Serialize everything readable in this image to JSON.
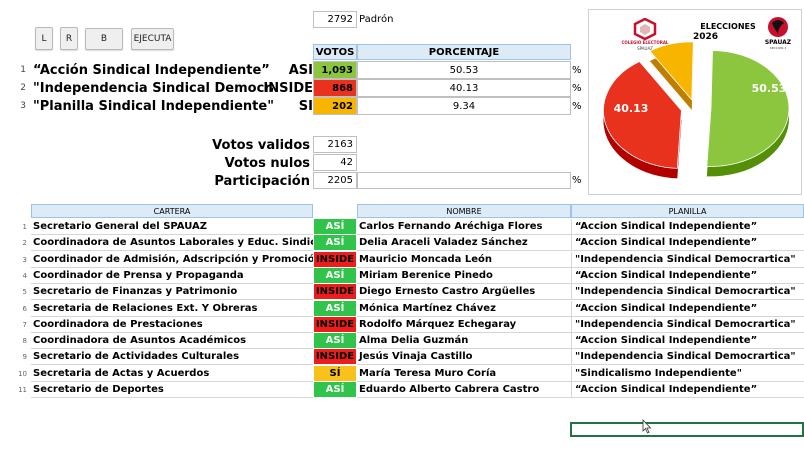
{
  "toolbar": {
    "l_label": "L",
    "r_label": "R",
    "b_label": "B",
    "ejecuta_label": "EJECUTA"
  },
  "padron": {
    "value": "2792",
    "label": "Padrón"
  },
  "headers": {
    "votos": "VOTOS",
    "porcentaje": "PORCENTAJE"
  },
  "candidates": [
    {
      "num": "1",
      "name": "“Acción Sindical Independiente”",
      "abbr": "ASI",
      "votes": "1,093",
      "pct": "50.53",
      "sign": "%",
      "color": "#8cc63f"
    },
    {
      "num": "2",
      "name": "\"Independencia Sindical Democrática\"",
      "abbr": "INSIDE",
      "votes": "868",
      "pct": "40.13",
      "sign": "%",
      "color": "#e8321e"
    },
    {
      "num": "3",
      "name": "\"Planilla Sindical Independiente\"",
      "abbr": "SI",
      "votes": "202",
      "pct": "9.34",
      "sign": "%",
      "color": "#f7b500"
    }
  ],
  "summary": [
    {
      "label": "Votos validos",
      "value": "2163",
      "sign": ""
    },
    {
      "label": "Votos nulos",
      "value": "42",
      "sign": ""
    },
    {
      "label": "Participación",
      "value": "2205",
      "sign": "%"
    }
  ],
  "chart": {
    "title_line1": "ELECCIONES",
    "title_line2": "2026",
    "logo_left_text": "COLEGIO ELECTORAL",
    "logo_left_sub": "SPAUAZ",
    "logo_right_text": "SPAUAZ",
    "logo_right_sub": "SECCIÓN 1",
    "label_green": "50.53",
    "label_red": "40.13"
  },
  "chart_data": {
    "type": "pie",
    "categories": [
      "ASI",
      "INSIDE",
      "SI"
    ],
    "values": [
      50.53,
      40.13,
      9.34
    ],
    "colors": [
      "#8cc63f",
      "#e8321e",
      "#f7b500"
    ],
    "title": "ELECCIONES 2026"
  },
  "table": {
    "headers": {
      "cartera": "CARTERA",
      "nombre": "NOMBRE",
      "planilla": "PLANILLA"
    },
    "rows": [
      {
        "num": "1",
        "cartera": "Secretario General del SPAUAZ",
        "badge": "ASÍ",
        "badge_color": "#31c44a",
        "badge_text": "#ffffff",
        "nombre": "Carlos Fernando Aréchiga Flores",
        "planilla": "“Accion Sindical Independiente”"
      },
      {
        "num": "2",
        "cartera": "Coordinadora de Asuntos Laborales y Educ. Sindical",
        "badge": "ASÍ",
        "badge_color": "#31c44a",
        "badge_text": "#ffffff",
        "nombre": "Delia Araceli Valadez Sánchez",
        "planilla": "“Accion Sindical Independiente”"
      },
      {
        "num": "3",
        "cartera": "Coordinador de Admisión, Adscripción y Promoción",
        "badge": "INSIDE",
        "badge_color": "#ee1c1c",
        "badge_text": "#000000",
        "nombre": "Mauricio Moncada León",
        "planilla": "\"Independencia Sindical Democrartica\""
      },
      {
        "num": "4",
        "cartera": "Coordinador de Prensa y Propaganda",
        "badge": "ASÍ",
        "badge_color": "#31c44a",
        "badge_text": "#ffffff",
        "nombre": "Miriam Berenice Pinedo",
        "planilla": "“Accion Sindical Independiente”"
      },
      {
        "num": "5",
        "cartera": "Secretario de Finanzas y Patrimonio",
        "badge": "INSIDE",
        "badge_color": "#ee1c1c",
        "badge_text": "#000000",
        "nombre": "Diego Ernesto Castro Argüelles",
        "planilla": "\"Independencia Sindical Democrartica\""
      },
      {
        "num": "6",
        "cartera": "Secretaria de Relaciones Ext. Y Obreras",
        "badge": "ASÍ",
        "badge_color": "#31c44a",
        "badge_text": "#ffffff",
        "nombre": "Mónica Martínez Chávez",
        "planilla": "“Accion Sindical Independiente”"
      },
      {
        "num": "7",
        "cartera": "Coordinadora de Prestaciones",
        "badge": "INSIDE",
        "badge_color": "#ee1c1c",
        "badge_text": "#000000",
        "nombre": "Rodolfo Márquez Echegaray",
        "planilla": "\"Independencia Sindical Democrartica\""
      },
      {
        "num": "8",
        "cartera": "Coordinadora de Asuntos Académicos",
        "badge": "ASÍ",
        "badge_color": "#31c44a",
        "badge_text": "#ffffff",
        "nombre": "Alma Delia Guzmán",
        "planilla": "“Accion Sindical Independiente”"
      },
      {
        "num": "9",
        "cartera": "Secretario de Actividades Culturales",
        "badge": "INSIDE",
        "badge_color": "#ee1c1c",
        "badge_text": "#000000",
        "nombre": "Jesús Vinaja Castillo",
        "planilla": "\"Independencia Sindical Democrartica\""
      },
      {
        "num": "10",
        "cartera": "Secretaria de Actas y Acuerdos",
        "badge": "SÍ",
        "badge_color": "#f7c21a",
        "badge_text": "#000000",
        "nombre": "María Teresa Muro Coría",
        "planilla": "\"Sindicalismo Independiente\""
      },
      {
        "num": "11",
        "cartera": "Secretario de Deportes",
        "badge": "ASÍ",
        "badge_color": "#31c44a",
        "badge_text": "#ffffff",
        "nombre": "Eduardo Alberto Cabrera Castro",
        "planilla": "“Accion Sindical Independiente”"
      }
    ]
  }
}
